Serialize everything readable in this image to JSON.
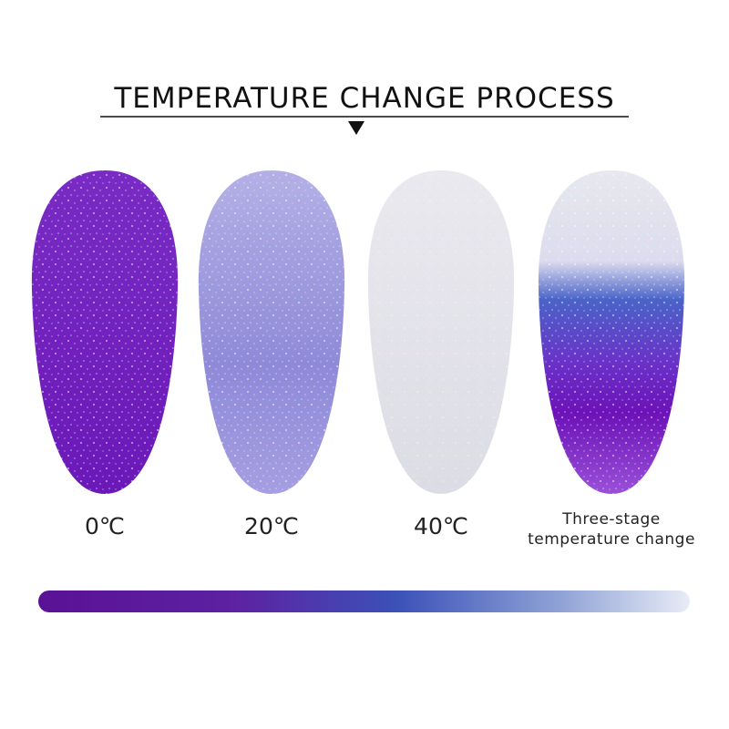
{
  "header": {
    "title": "TEMPERATURE CHANGE PROCESS"
  },
  "nails": [
    {
      "label": [
        "0℃"
      ]
    },
    {
      "label": [
        "20℃"
      ]
    },
    {
      "label": [
        "40℃"
      ]
    },
    {
      "label": [
        "Three-stage",
        "temperature change"
      ]
    }
  ]
}
